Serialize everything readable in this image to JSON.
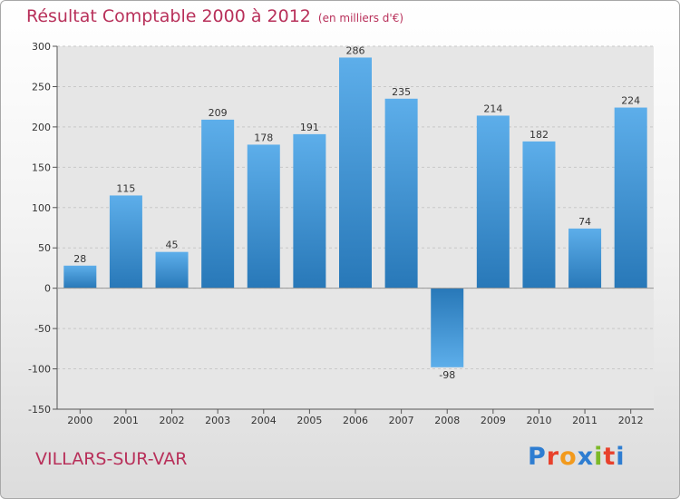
{
  "header": {
    "title": "Résultat Comptable 2000 à 2012",
    "subtitle": "(en milliers d'€)"
  },
  "footer": {
    "commune": "VILLARS-SUR-VAR",
    "logo_letters": [
      "P",
      "r",
      "o",
      "x",
      "i",
      "t",
      "i"
    ],
    "logo_colors": [
      "#2e7dd1",
      "#e8412c",
      "#f29a1d",
      "#2e7dd1",
      "#7cb928",
      "#e8412c",
      "#2e7dd1"
    ]
  },
  "colors": {
    "title": "#b8305a",
    "bar_top": "#5daeea",
    "bar_bottom": "#2878b8",
    "grid": "#c8c8c8"
  },
  "chart_data": {
    "type": "bar",
    "title": "Résultat Comptable 2000 à 2012",
    "xlabel": "",
    "ylabel": "",
    "categories": [
      "2000",
      "2001",
      "2002",
      "2003",
      "2004",
      "2005",
      "2006",
      "2007",
      "2008",
      "2009",
      "2010",
      "2011",
      "2012"
    ],
    "values": [
      28,
      115,
      45,
      209,
      178,
      191,
      286,
      235,
      -98,
      214,
      182,
      74,
      224
    ],
    "ylim": [
      -150,
      300
    ],
    "yticks": [
      300,
      250,
      200,
      150,
      100,
      50,
      0,
      -50,
      -100,
      -150
    ],
    "grid": true
  }
}
